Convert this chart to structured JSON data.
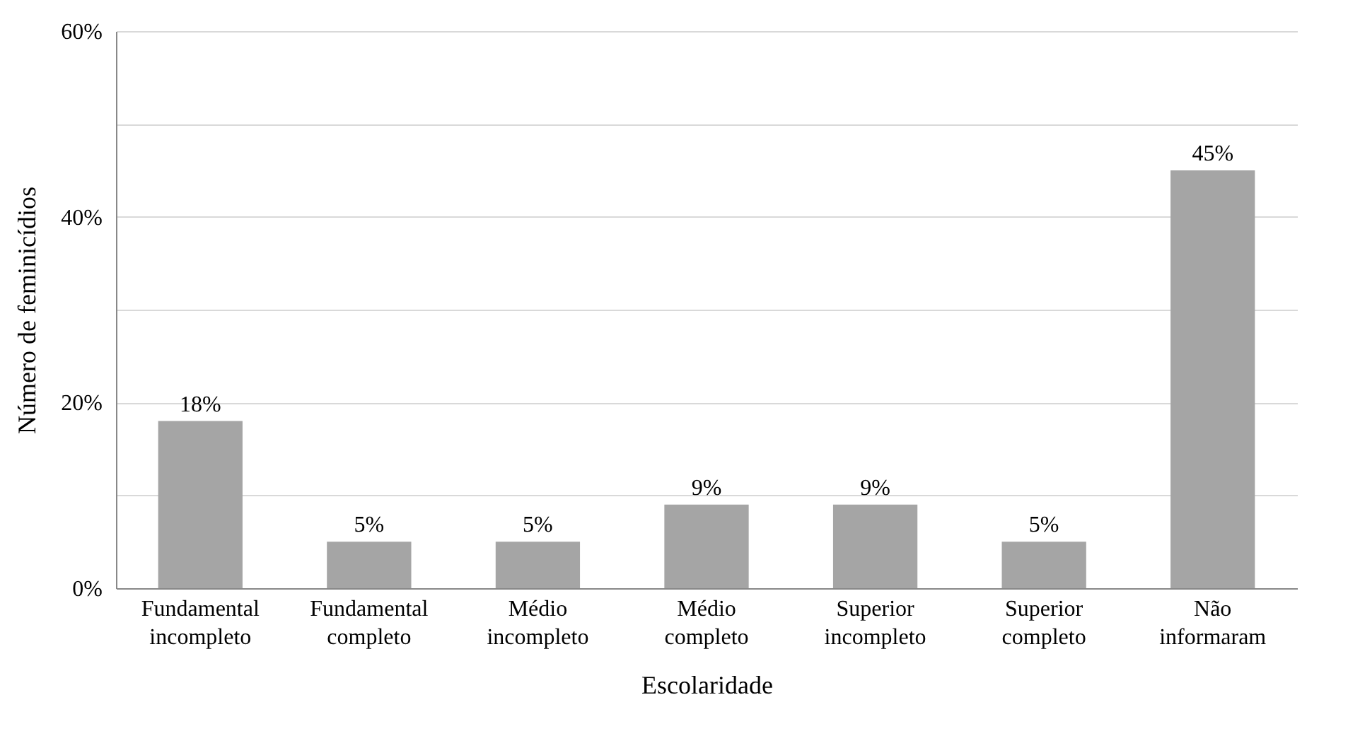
{
  "chart_data": {
    "type": "bar",
    "xlabel": "Escolaridade",
    "ylabel": "Número de feminicídios",
    "categories": [
      "Fundamental incompleto",
      "Fundamental completo",
      "Médio incompleto",
      "Médio completo",
      "Superior incompleto",
      "Superior completo",
      "Não informaram"
    ],
    "values": [
      18,
      5,
      5,
      9,
      9,
      5,
      45
    ],
    "value_labels": [
      "18%",
      "5%",
      "5%",
      "9%",
      "9%",
      "5%",
      "45%"
    ],
    "color": "#a5a5a5",
    "ylim": [
      0,
      60
    ],
    "yticks": [
      {
        "value": 0,
        "label": "0%"
      },
      {
        "value": 10,
        "label": null
      },
      {
        "value": 20,
        "label": "20%"
      },
      {
        "value": 30,
        "label": null
      },
      {
        "value": 40,
        "label": "40%"
      },
      {
        "value": 50,
        "label": null
      },
      {
        "value": 60,
        "label": "60%"
      }
    ],
    "grid": "y"
  }
}
